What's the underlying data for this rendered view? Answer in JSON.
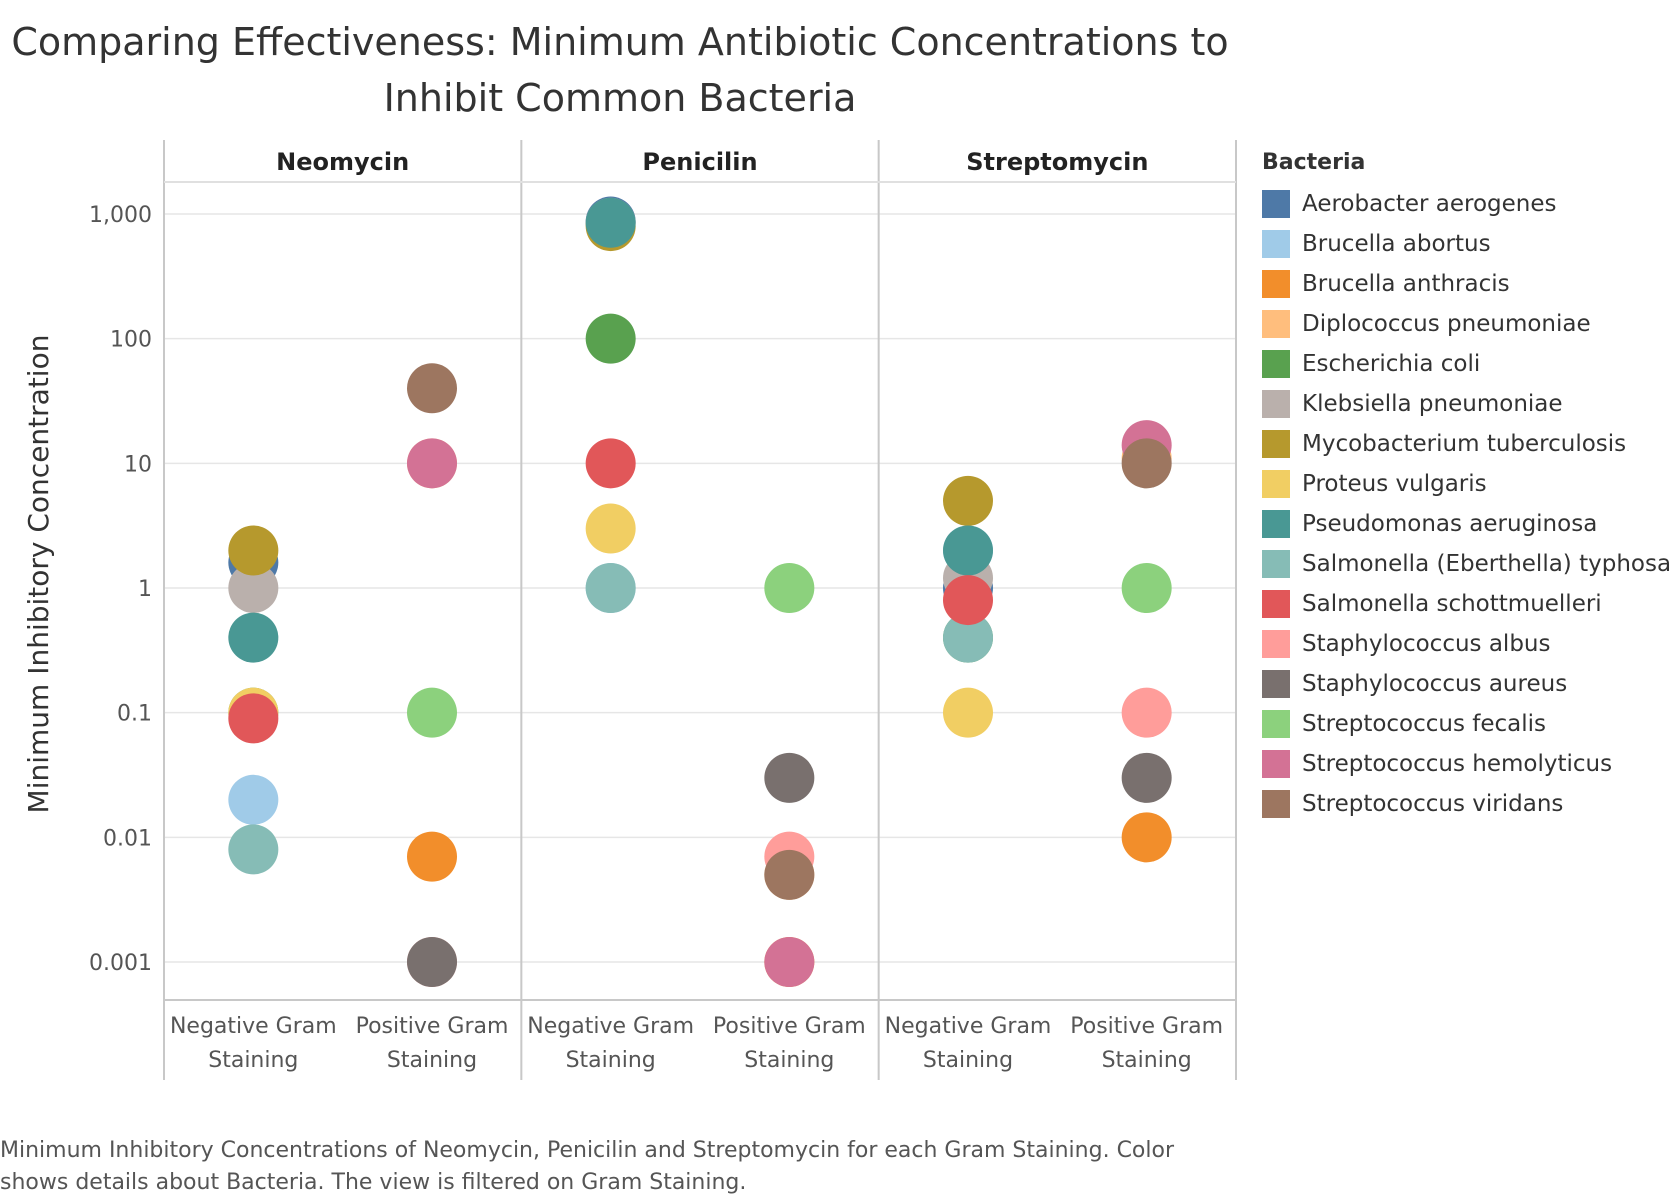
{
  "chart_data": {
    "type": "scatter",
    "title_lines": [
      "Comparing Effectiveness: Minimum Antibiotic Concentrations to",
      "Inhibit Common Bacteria"
    ],
    "ylabel": "Minimum Inhibitory Concentration",
    "yscale": "log",
    "ylim": [
      0.001,
      1000
    ],
    "yticks": [
      {
        "value": 1000,
        "label": "1,000"
      },
      {
        "value": 100,
        "label": "100"
      },
      {
        "value": 10,
        "label": "10"
      },
      {
        "value": 1,
        "label": "1"
      },
      {
        "value": 0.1,
        "label": "0.1"
      },
      {
        "value": 0.01,
        "label": "0.01"
      },
      {
        "value": 0.001,
        "label": "0.001"
      }
    ],
    "grid": true,
    "panels": [
      "Neomycin",
      "Penicilin",
      "Streptomycin"
    ],
    "categories": [
      {
        "key": "neg",
        "lines": [
          "Negative Gram",
          "Staining"
        ]
      },
      {
        "key": "pos",
        "lines": [
          "Positive Gram",
          "Staining"
        ]
      }
    ],
    "legend_title": "Bacteria",
    "legend_position": "right",
    "series": [
      {
        "name": "Aerobacter aerogenes",
        "color": "#4e79a7",
        "stain": "neg",
        "values": {
          "Neomycin": 1.6,
          "Penicilin": 870,
          "Streptomycin": 1
        }
      },
      {
        "name": "Brucella abortus",
        "color": "#a0cbe8",
        "stain": "neg",
        "values": {
          "Neomycin": 0.02,
          "Penicilin": 1,
          "Streptomycin": 2
        }
      },
      {
        "name": "Brucella anthracis",
        "color": "#f28e2b",
        "stain": "pos",
        "values": {
          "Neomycin": 0.007,
          "Penicilin": 0.001,
          "Streptomycin": 0.01
        }
      },
      {
        "name": "Diplococcus pneumoniae",
        "color": "#ffbe7d",
        "stain": "pos",
        "values": {
          "Neomycin": 10,
          "Penicilin": 0.005,
          "Streptomycin": 11
        }
      },
      {
        "name": "Escherichia coli",
        "color": "#59a14f",
        "stain": "neg",
        "values": {
          "Neomycin": 0.1,
          "Penicilin": 100,
          "Streptomycin": 0.4
        }
      },
      {
        "name": "Klebsiella pneumoniae",
        "color": "#bab0ac",
        "stain": "neg",
        "values": {
          "Neomycin": 1,
          "Penicilin": 850,
          "Streptomycin": 1.2
        }
      },
      {
        "name": "Mycobacterium tuberculosis",
        "color": "#b6992d",
        "stain": "neg",
        "values": {
          "Neomycin": 2,
          "Penicilin": 800,
          "Streptomycin": 5
        }
      },
      {
        "name": "Proteus vulgaris",
        "color": "#f1ce63",
        "stain": "neg",
        "values": {
          "Neomycin": 0.1,
          "Penicilin": 3,
          "Streptomycin": 0.1
        }
      },
      {
        "name": "Pseudomonas aeruginosa",
        "color": "#499894",
        "stain": "neg",
        "values": {
          "Neomycin": 0.4,
          "Penicilin": 850,
          "Streptomycin": 2
        }
      },
      {
        "name": "Salmonella (Eberthella) typhosa",
        "color": "#86bcb6",
        "stain": "neg",
        "values": {
          "Neomycin": 0.008,
          "Penicilin": 1,
          "Streptomycin": 0.4
        }
      },
      {
        "name": "Salmonella schottmuelleri",
        "color": "#e15759",
        "stain": "neg",
        "values": {
          "Neomycin": 0.09,
          "Penicilin": 10,
          "Streptomycin": 0.8
        }
      },
      {
        "name": "Staphylococcus albus",
        "color": "#ff9d9a",
        "stain": "pos",
        "values": {
          "Neomycin": 0.001,
          "Penicilin": 0.007,
          "Streptomycin": 0.1
        }
      },
      {
        "name": "Staphylococcus aureus",
        "color": "#79706e",
        "stain": "pos",
        "values": {
          "Neomycin": 0.001,
          "Penicilin": 0.03,
          "Streptomycin": 0.03
        }
      },
      {
        "name": "Streptococcus fecalis",
        "color": "#8cd17d",
        "stain": "pos",
        "values": {
          "Neomycin": 0.1,
          "Penicilin": 1,
          "Streptomycin": 1
        }
      },
      {
        "name": "Streptococcus hemolyticus",
        "color": "#d37295",
        "stain": "pos",
        "values": {
          "Neomycin": 10,
          "Penicilin": 0.001,
          "Streptomycin": 14
        }
      },
      {
        "name": "Streptococcus viridans",
        "color": "#9d7660",
        "stain": "pos",
        "values": {
          "Neomycin": 40,
          "Penicilin": 0.005,
          "Streptomycin": 10
        }
      }
    ]
  },
  "caption_lines": [
    "Minimum Inhibitory Concentrations of Neomycin, Penicilin and Streptomycin for each Gram Staining.  Color",
    "shows details about Bacteria. The view is filtered on Gram Staining."
  ]
}
